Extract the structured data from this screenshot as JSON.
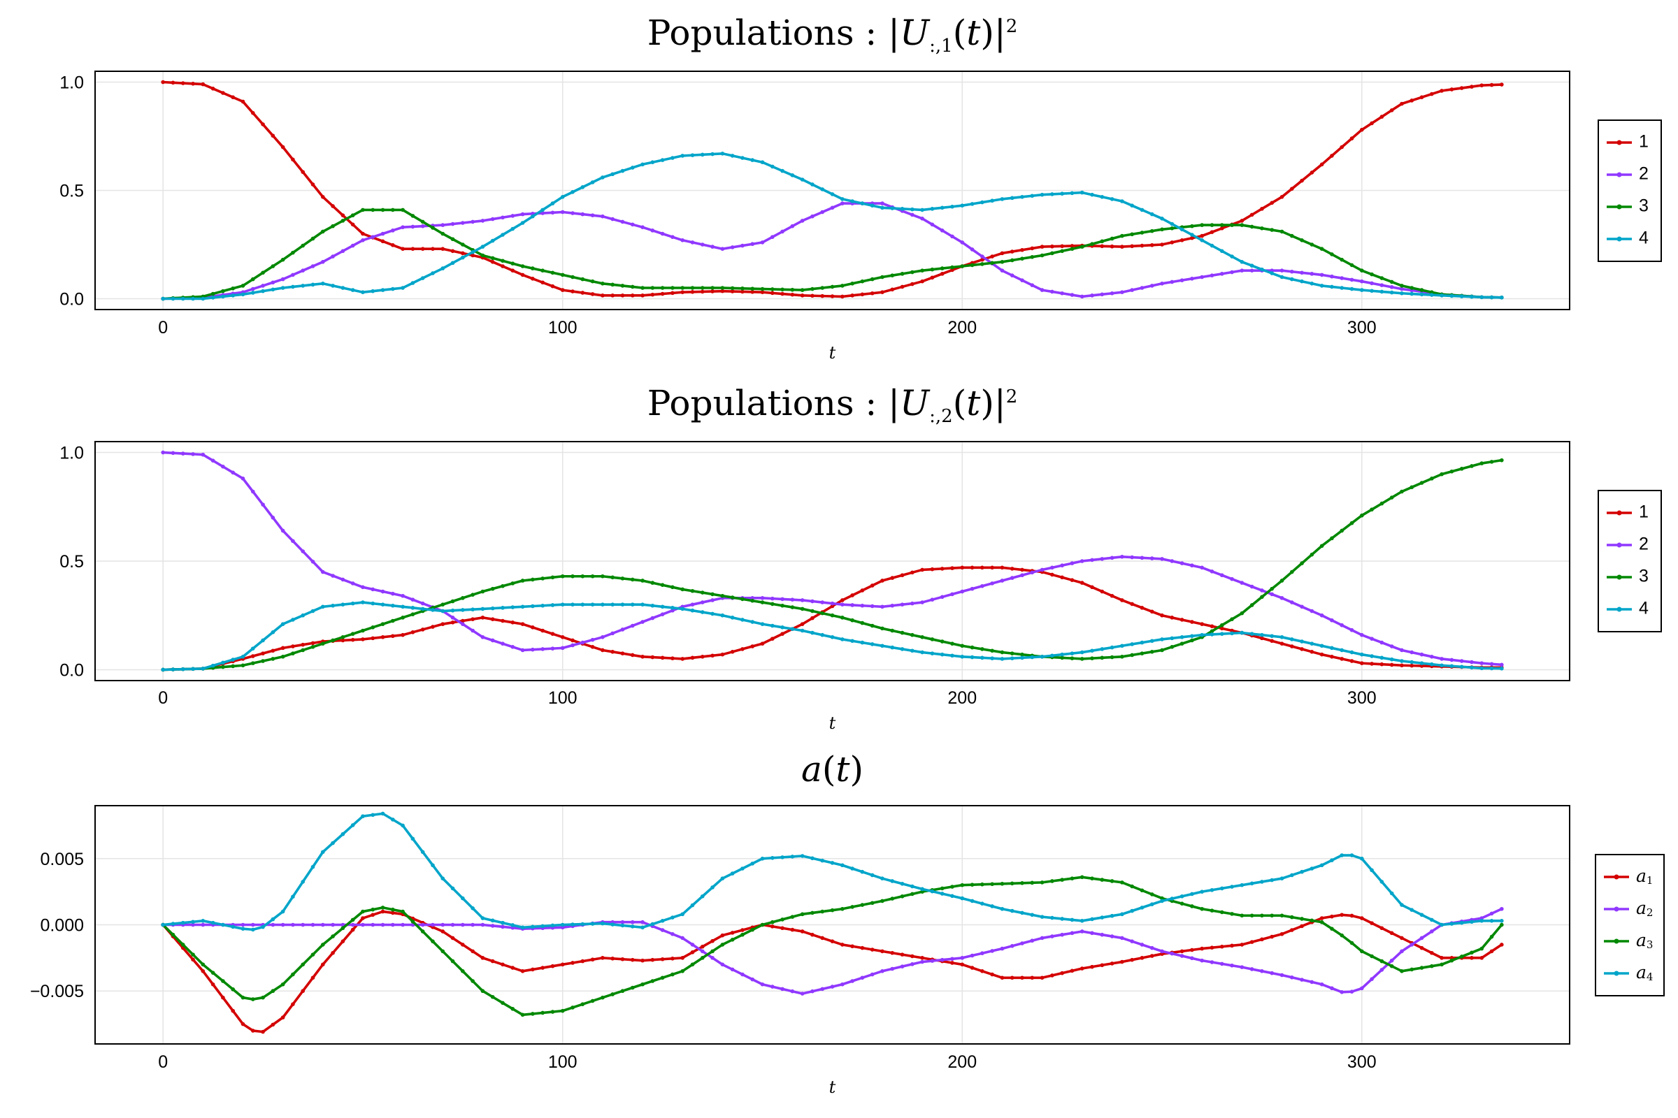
{
  "chart_data": [
    {
      "type": "line",
      "title": "Populations: |U_{:,1}(t)|^2",
      "xlabel": "t",
      "ylabel": "",
      "xlim": [
        -17,
        352
      ],
      "ylim": [
        -0.05,
        1.05
      ],
      "xticks": [
        0,
        100,
        200,
        300
      ],
      "xtick_labels": [
        "0",
        "100",
        "200",
        "300"
      ],
      "yticks": [
        0.0,
        0.5,
        1.0
      ],
      "ytick_labels": [
        "0.0",
        "0.5",
        "1.0"
      ],
      "grid": true,
      "legend": "right",
      "x": [
        0,
        10,
        20,
        30,
        40,
        50,
        60,
        70,
        80,
        90,
        100,
        110,
        120,
        130,
        140,
        150,
        160,
        170,
        180,
        190,
        200,
        210,
        220,
        230,
        240,
        250,
        260,
        270,
        280,
        290,
        300,
        310,
        320,
        330,
        337
      ],
      "series": [
        {
          "name": "1",
          "color": "#d40000",
          "values": [
            1.0,
            0.99,
            0.91,
            0.7,
            0.47,
            0.3,
            0.23,
            0.23,
            0.19,
            0.11,
            0.04,
            0.015,
            0.015,
            0.03,
            0.035,
            0.03,
            0.015,
            0.01,
            0.03,
            0.08,
            0.15,
            0.21,
            0.24,
            0.245,
            0.24,
            0.25,
            0.29,
            0.36,
            0.47,
            0.62,
            0.78,
            0.9,
            0.96,
            0.985,
            0.99
          ]
        },
        {
          "name": "2",
          "color": "#9038ff",
          "values": [
            0.0,
            0.005,
            0.03,
            0.09,
            0.17,
            0.27,
            0.33,
            0.34,
            0.36,
            0.39,
            0.4,
            0.38,
            0.33,
            0.27,
            0.23,
            0.26,
            0.36,
            0.44,
            0.44,
            0.37,
            0.26,
            0.13,
            0.04,
            0.01,
            0.03,
            0.07,
            0.1,
            0.13,
            0.13,
            0.11,
            0.08,
            0.045,
            0.02,
            0.007,
            0.005
          ]
        },
        {
          "name": "3",
          "color": "#008800",
          "values": [
            0.0,
            0.01,
            0.06,
            0.18,
            0.31,
            0.41,
            0.41,
            0.3,
            0.2,
            0.15,
            0.11,
            0.07,
            0.05,
            0.05,
            0.05,
            0.045,
            0.04,
            0.06,
            0.1,
            0.13,
            0.15,
            0.17,
            0.2,
            0.24,
            0.29,
            0.32,
            0.34,
            0.34,
            0.31,
            0.23,
            0.13,
            0.06,
            0.02,
            0.007,
            0.005
          ]
        },
        {
          "name": "4",
          "color": "#00a5c9",
          "values": [
            0.0,
            0.0,
            0.02,
            0.05,
            0.07,
            0.03,
            0.05,
            0.14,
            0.24,
            0.35,
            0.47,
            0.56,
            0.62,
            0.66,
            0.67,
            0.63,
            0.55,
            0.46,
            0.42,
            0.41,
            0.43,
            0.46,
            0.48,
            0.49,
            0.45,
            0.37,
            0.27,
            0.17,
            0.1,
            0.06,
            0.04,
            0.025,
            0.015,
            0.007,
            0.005
          ]
        }
      ]
    },
    {
      "type": "line",
      "title": "Populations: |U_{:,2}(t)|^2",
      "xlabel": "t",
      "ylabel": "",
      "xlim": [
        -17,
        352
      ],
      "ylim": [
        -0.05,
        1.05
      ],
      "xticks": [
        0,
        100,
        200,
        300
      ],
      "xtick_labels": [
        "0",
        "100",
        "200",
        "300"
      ],
      "yticks": [
        0.0,
        0.5,
        1.0
      ],
      "ytick_labels": [
        "0.0",
        "0.5",
        "1.0"
      ],
      "grid": true,
      "legend": "right",
      "x": [
        0,
        10,
        20,
        30,
        40,
        50,
        60,
        70,
        80,
        90,
        100,
        110,
        120,
        130,
        140,
        150,
        160,
        170,
        180,
        190,
        200,
        210,
        220,
        230,
        240,
        250,
        260,
        270,
        280,
        290,
        300,
        310,
        320,
        330,
        337
      ],
      "series": [
        {
          "name": "1",
          "color": "#d40000",
          "values": [
            0.0,
            0.005,
            0.05,
            0.1,
            0.13,
            0.14,
            0.16,
            0.21,
            0.24,
            0.21,
            0.15,
            0.09,
            0.06,
            0.05,
            0.07,
            0.12,
            0.21,
            0.32,
            0.41,
            0.46,
            0.47,
            0.47,
            0.45,
            0.4,
            0.32,
            0.25,
            0.21,
            0.17,
            0.12,
            0.07,
            0.03,
            0.02,
            0.015,
            0.01,
            0.01
          ]
        },
        {
          "name": "2",
          "color": "#9038ff",
          "values": [
            1.0,
            0.99,
            0.88,
            0.64,
            0.45,
            0.38,
            0.34,
            0.27,
            0.15,
            0.09,
            0.1,
            0.15,
            0.22,
            0.29,
            0.33,
            0.33,
            0.32,
            0.3,
            0.29,
            0.31,
            0.36,
            0.41,
            0.46,
            0.5,
            0.52,
            0.51,
            0.47,
            0.4,
            0.33,
            0.25,
            0.16,
            0.09,
            0.05,
            0.03,
            0.02
          ]
        },
        {
          "name": "3",
          "color": "#008800",
          "values": [
            0.0,
            0.005,
            0.02,
            0.06,
            0.12,
            0.18,
            0.24,
            0.3,
            0.36,
            0.41,
            0.43,
            0.43,
            0.41,
            0.37,
            0.34,
            0.31,
            0.28,
            0.24,
            0.19,
            0.15,
            0.11,
            0.08,
            0.06,
            0.05,
            0.06,
            0.09,
            0.15,
            0.26,
            0.41,
            0.57,
            0.71,
            0.82,
            0.9,
            0.95,
            0.97
          ]
        },
        {
          "name": "4",
          "color": "#00a5c9",
          "values": [
            0.0,
            0.005,
            0.06,
            0.21,
            0.29,
            0.31,
            0.29,
            0.27,
            0.28,
            0.29,
            0.3,
            0.3,
            0.3,
            0.28,
            0.25,
            0.21,
            0.18,
            0.14,
            0.11,
            0.08,
            0.06,
            0.05,
            0.06,
            0.08,
            0.11,
            0.14,
            0.16,
            0.17,
            0.15,
            0.11,
            0.07,
            0.04,
            0.02,
            0.007,
            0.005
          ]
        }
      ]
    },
    {
      "type": "line",
      "title": "a(t)",
      "xlabel": "t",
      "ylabel": "",
      "xlim": [
        -17,
        352
      ],
      "ylim": [
        -0.009,
        0.009
      ],
      "xticks": [
        0,
        100,
        200,
        300
      ],
      "xtick_labels": [
        "0",
        "100",
        "200",
        "300"
      ],
      "yticks": [
        -0.005,
        0.0,
        0.005
      ],
      "ytick_labels": [
        "−0.005",
        "0.000",
        "0.005"
      ],
      "grid": true,
      "legend": "right",
      "x": [
        0,
        10,
        20,
        24,
        30,
        40,
        50,
        55,
        60,
        70,
        80,
        90,
        100,
        110,
        120,
        130,
        140,
        150,
        160,
        170,
        180,
        190,
        200,
        210,
        220,
        230,
        240,
        250,
        260,
        270,
        280,
        290,
        296,
        300,
        310,
        320,
        330,
        335,
        337
      ],
      "series": [
        {
          "name": "a₁",
          "color": "#d40000",
          "values": [
            0.0,
            -0.0035,
            -0.0075,
            -0.0083,
            -0.007,
            -0.003,
            0.0005,
            0.001,
            0.0008,
            -0.0005,
            -0.0025,
            -0.0035,
            -0.003,
            -0.0025,
            -0.0027,
            -0.0025,
            -0.0008,
            0.0,
            -0.0005,
            -0.0015,
            -0.002,
            -0.0025,
            -0.003,
            -0.004,
            -0.004,
            -0.0033,
            -0.0028,
            -0.0022,
            -0.0018,
            -0.0015,
            -0.0007,
            0.0005,
            0.0008,
            0.0005,
            -0.001,
            -0.0025,
            -0.0025,
            -0.0015,
            0.0
          ]
        },
        {
          "name": "a₂",
          "color": "#9038ff",
          "values": [
            0.0,
            0.0,
            0.0,
            0.0,
            0.0,
            0.0,
            0.0,
            0.0,
            0.0,
            0.0,
            0.0,
            -0.0003,
            -0.0002,
            0.0002,
            0.0002,
            -0.001,
            -0.003,
            -0.0045,
            -0.0052,
            -0.0045,
            -0.0035,
            -0.0028,
            -0.0025,
            -0.0018,
            -0.001,
            -0.0005,
            -0.001,
            -0.002,
            -0.0027,
            -0.0032,
            -0.0038,
            -0.0045,
            -0.0052,
            -0.0048,
            -0.002,
            0.0,
            0.0005,
            0.0012,
            0.0
          ]
        },
        {
          "name": "a₃",
          "color": "#008800",
          "values": [
            0.0,
            -0.003,
            -0.0055,
            -0.0057,
            -0.0045,
            -0.0015,
            0.001,
            0.0013,
            0.001,
            -0.002,
            -0.005,
            -0.0068,
            -0.0065,
            -0.0055,
            -0.0045,
            -0.0035,
            -0.0015,
            0.0,
            0.0008,
            0.0012,
            0.0018,
            0.0025,
            0.003,
            0.0031,
            0.0032,
            0.0036,
            0.0032,
            0.002,
            0.0012,
            0.0007,
            0.0007,
            0.0002,
            -0.001,
            -0.002,
            -0.0035,
            -0.003,
            -0.0018,
            0.0,
            0.0
          ]
        },
        {
          "name": "a₄",
          "color": "#00a5c9",
          "values": [
            0.0,
            0.0003,
            -0.0003,
            -0.0004,
            0.001,
            0.0055,
            0.0082,
            0.0084,
            0.0075,
            0.0035,
            0.0005,
            -0.0002,
            0.0,
            0.0001,
            -0.0002,
            0.0008,
            0.0035,
            0.005,
            0.0052,
            0.0045,
            0.0035,
            0.0027,
            0.002,
            0.0012,
            0.0006,
            0.0003,
            0.0008,
            0.0018,
            0.0025,
            0.003,
            0.0035,
            0.0045,
            0.0054,
            0.005,
            0.0015,
            0.0,
            0.0003,
            0.0003,
            0.0
          ]
        }
      ]
    }
  ]
}
